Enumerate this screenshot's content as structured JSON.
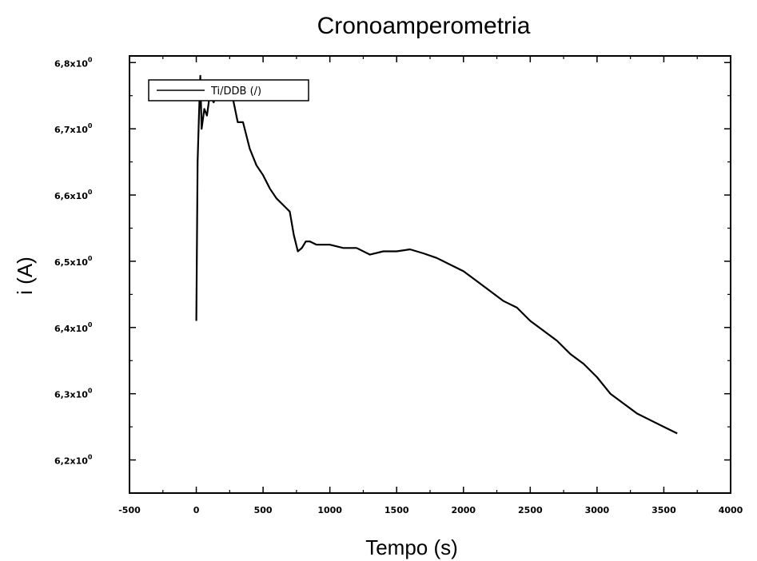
{
  "chart_data": {
    "type": "line",
    "title": "Cronoamperometria",
    "xlabel": "Tempo (s)",
    "ylabel": "i (A)",
    "xlim": [
      -500,
      4000
    ],
    "ylim": [
      6.15,
      6.81
    ],
    "x_ticks": [
      {
        "value": -500,
        "label": "-500"
      },
      {
        "value": 0,
        "label": "0"
      },
      {
        "value": 500,
        "label": "500"
      },
      {
        "value": 1000,
        "label": "1000"
      },
      {
        "value": 1500,
        "label": "1500"
      },
      {
        "value": 2000,
        "label": "2000"
      },
      {
        "value": 2500,
        "label": "2500"
      },
      {
        "value": 3000,
        "label": "3000"
      },
      {
        "value": 3500,
        "label": "3500"
      },
      {
        "value": 4000,
        "label": "4000"
      }
    ],
    "y_ticks": [
      {
        "value": 6.2,
        "mantissa": "6,2",
        "exp": "0"
      },
      {
        "value": 6.3,
        "mantissa": "6,3",
        "exp": "0"
      },
      {
        "value": 6.4,
        "mantissa": "6,4",
        "exp": "0"
      },
      {
        "value": 6.5,
        "mantissa": "6,5",
        "exp": "0"
      },
      {
        "value": 6.6,
        "mantissa": "6,6",
        "exp": "0"
      },
      {
        "value": 6.7,
        "mantissa": "6,7",
        "exp": "0"
      },
      {
        "value": 6.8,
        "mantissa": "6,8",
        "exp": "0"
      }
    ],
    "legend_position": "top-left",
    "grid": false,
    "series": [
      {
        "name": "Ti/DDB (/)",
        "color": "#000000",
        "x": [
          0,
          10,
          20,
          30,
          40,
          60,
          80,
          100,
          130,
          160,
          190,
          220,
          250,
          280,
          310,
          350,
          400,
          450,
          500,
          550,
          600,
          650,
          700,
          730,
          760,
          790,
          820,
          850,
          900,
          1000,
          1100,
          1200,
          1300,
          1400,
          1500,
          1600,
          1700,
          1800,
          1900,
          2000,
          2100,
          2200,
          2300,
          2400,
          2500,
          2600,
          2700,
          2800,
          2900,
          3000,
          3100,
          3200,
          3300,
          3400,
          3500,
          3600
        ],
        "y": [
          6.41,
          6.65,
          6.72,
          6.78,
          6.7,
          6.73,
          6.72,
          6.75,
          6.74,
          6.76,
          6.76,
          6.76,
          6.77,
          6.74,
          6.71,
          6.71,
          6.67,
          6.645,
          6.63,
          6.61,
          6.595,
          6.585,
          6.575,
          6.54,
          6.515,
          6.52,
          6.53,
          6.53,
          6.525,
          6.525,
          6.52,
          6.52,
          6.51,
          6.515,
          6.515,
          6.518,
          6.512,
          6.505,
          6.495,
          6.485,
          6.47,
          6.455,
          6.44,
          6.43,
          6.41,
          6.395,
          6.38,
          6.36,
          6.345,
          6.325,
          6.3,
          6.285,
          6.27,
          6.26,
          6.25,
          6.24
        ]
      }
    ]
  }
}
